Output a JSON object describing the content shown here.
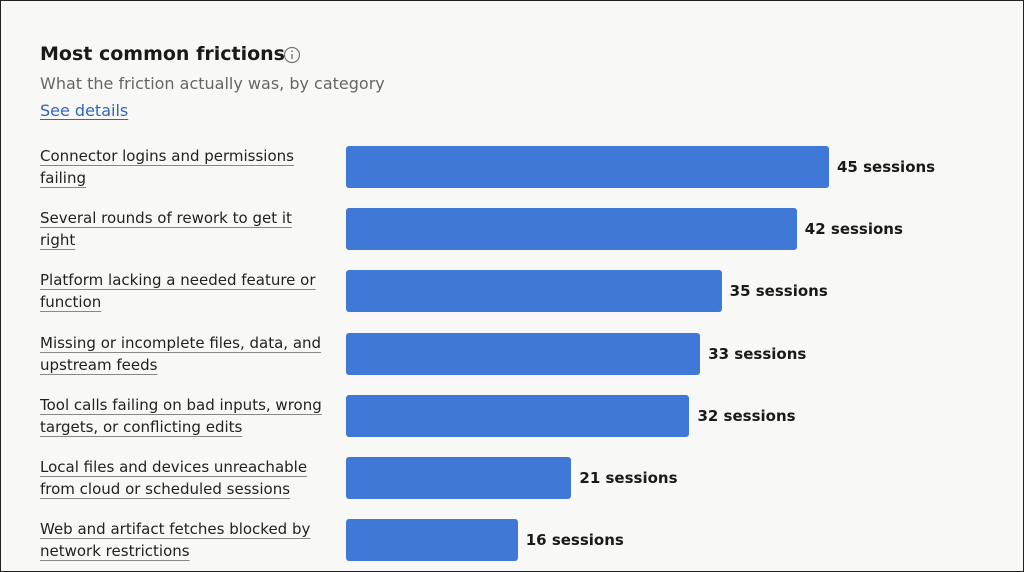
{
  "chart_data": {
    "type": "bar",
    "orientation": "horizontal",
    "title": "Most common frictions",
    "subtitle": "What the friction actually was, by category",
    "link": "See details",
    "categories": [
      "Connector logins and permissions failing",
      "Several rounds of rework to get it right",
      "Platform lacking a needed feature or function",
      "Missing or incomplete files, data, and upstream feeds",
      "Tool calls failing on bad inputs, wrong targets, or conflicting edits",
      "Local files and devices unreachable from cloud or scheduled sessions",
      "Web and artifact fetches blocked by network restrictions"
    ],
    "values": [
      45,
      42,
      35,
      33,
      32,
      21,
      16
    ],
    "value_labels": [
      "45 sessions",
      "42 sessions",
      "35 sessions",
      "33 sessions",
      "32 sessions",
      "21 sessions",
      "16 sessions"
    ],
    "color": "#3f78d6"
  }
}
